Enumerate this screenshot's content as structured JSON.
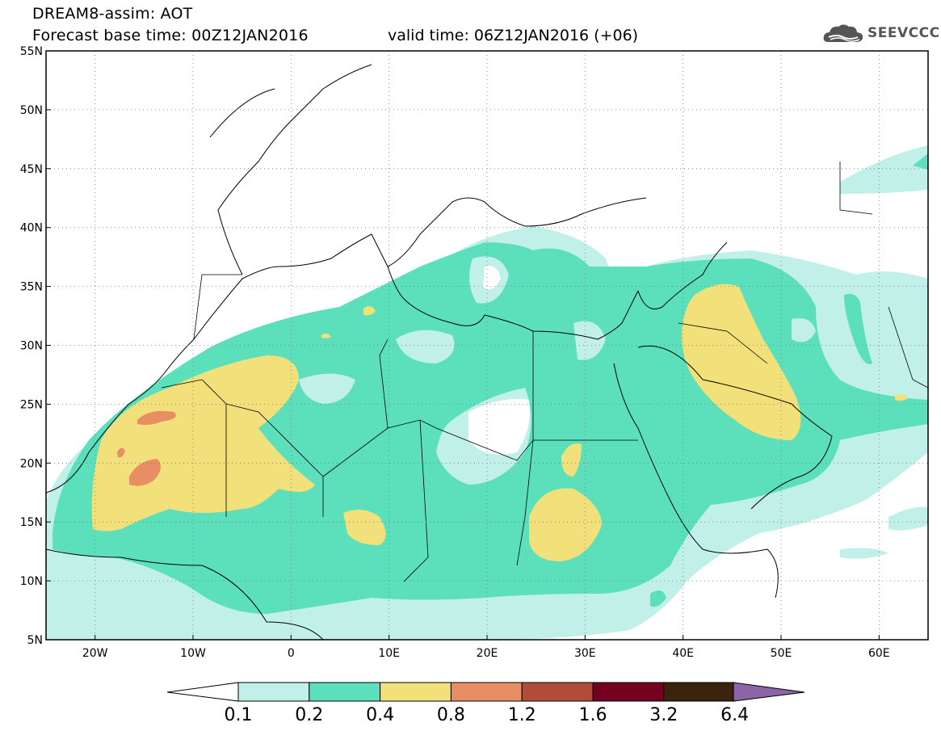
{
  "header": {
    "title": "DREAM8-assim: AOT",
    "base_time": "Forecast base time: 00Z12JAN2016",
    "valid_time": "valid time: 06Z12JAN2016 (+06)",
    "logo_text": "SEEVCCC"
  },
  "map": {
    "lon_range": [
      -25,
      65
    ],
    "lat_range": [
      5,
      55
    ],
    "lat_ticks": [
      {
        "value": 5,
        "label": "5N"
      },
      {
        "value": 10,
        "label": "10N"
      },
      {
        "value": 15,
        "label": "15N"
      },
      {
        "value": 20,
        "label": "20N"
      },
      {
        "value": 25,
        "label": "25N"
      },
      {
        "value": 30,
        "label": "30N"
      },
      {
        "value": 35,
        "label": "35N"
      },
      {
        "value": 40,
        "label": "40N"
      },
      {
        "value": 45,
        "label": "45N"
      },
      {
        "value": 50,
        "label": "50N"
      },
      {
        "value": 55,
        "label": "55N"
      }
    ],
    "lon_ticks": [
      {
        "value": -20,
        "label": "20W"
      },
      {
        "value": -10,
        "label": "10W"
      },
      {
        "value": 0,
        "label": "0"
      },
      {
        "value": 10,
        "label": "10E"
      },
      {
        "value": 20,
        "label": "20E"
      },
      {
        "value": 30,
        "label": "30E"
      },
      {
        "value": 40,
        "label": "40E"
      },
      {
        "value": 50,
        "label": "50E"
      },
      {
        "value": 60,
        "label": "60E"
      }
    ],
    "grid": "dotted"
  },
  "colorbar": {
    "levels": [
      "0.1",
      "0.2",
      "0.4",
      "0.8",
      "1.2",
      "1.6",
      "3.2",
      "6.4"
    ],
    "colors": [
      "#c0f0e8",
      "#5ce0bb",
      "#f2e07a",
      "#e88e64",
      "#b04c38",
      "#760020",
      "#3a2410",
      "#8c64a8"
    ],
    "under_color": "#ffffff"
  },
  "aot_colors": {
    "c01": "#c0f0e8",
    "c02": "#5ce0bb",
    "c04": "#f2e07a",
    "c08": "#e88e64"
  }
}
